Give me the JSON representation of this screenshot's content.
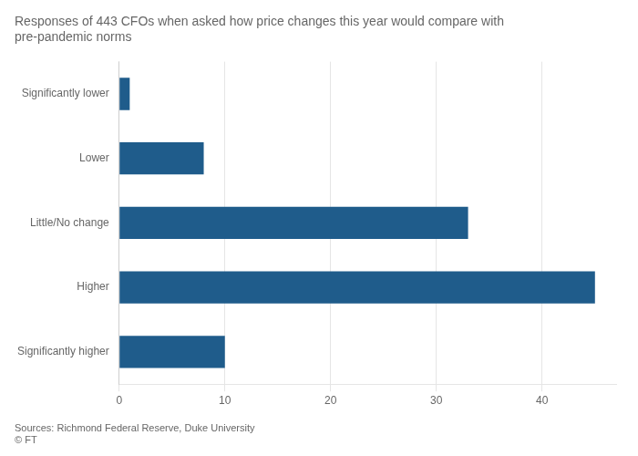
{
  "chart_data": {
    "type": "bar",
    "orientation": "horizontal",
    "title": "Responses of 443 CFOs when asked how price changes this year would compare with\npre-pandemic norms",
    "annotations": [
      "Sources: Richmond Federal Reserve, Duke University",
      "© FT"
    ],
    "categories": [
      "Significantly higher",
      "Higher",
      "Little/No change",
      "Lower",
      "Significantly lower"
    ],
    "values": [
      10,
      45,
      33,
      8,
      1
    ],
    "color": "#1f5c8b",
    "xlim": [
      0,
      47
    ],
    "xticks": [
      0,
      10,
      20,
      30,
      40
    ],
    "grid": true
  }
}
